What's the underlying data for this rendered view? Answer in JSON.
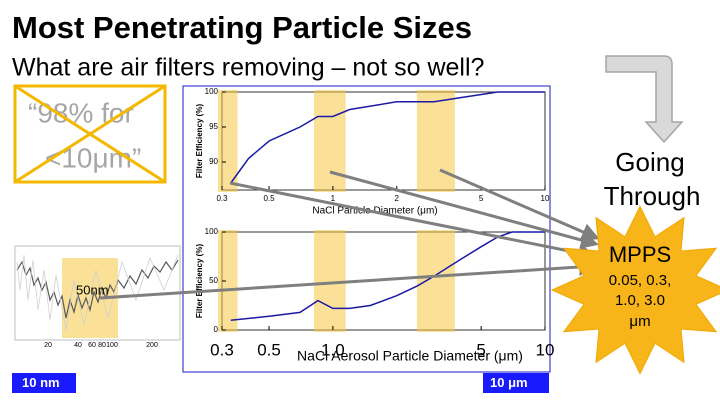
{
  "title": "Most Penetrating Particle Sizes",
  "subtitle": "What are air filters removing – not so well?",
  "crossed_box": {
    "line1": "“98% for",
    "line2": "<10μm”"
  },
  "going_through": {
    "line1": "Going",
    "line2": "Through"
  },
  "star": {
    "title": "MPPS",
    "line1": "0.05, 0.3,",
    "line2": "1.0, 3.0",
    "unit": "μm"
  },
  "small_chart": {
    "label": "50nm",
    "tick_labels": [
      "20",
      "40",
      "60",
      "80",
      "100",
      "200"
    ]
  },
  "scale_left": "10 nm",
  "scale_right": "10 μm",
  "chart_data": [
    {
      "type": "line",
      "xscale": "log",
      "xlabel": "NaCl Particle Diameter (μm)",
      "ylabel": "Filter Efficiency (%)",
      "x": [
        0.33,
        0.4,
        0.5,
        0.7,
        0.85,
        1,
        1.2,
        2,
        3,
        4,
        6,
        10
      ],
      "series": [
        {
          "color": "#1a1aa6",
          "values": [
            87,
            90.5,
            93,
            95,
            96.5,
            96.5,
            97.5,
            98.6,
            98.6,
            99.2,
            100,
            100
          ]
        }
      ],
      "xlim": [
        0.3,
        10
      ],
      "ylim": [
        86,
        100
      ],
      "xticks": [
        0.3,
        0.5,
        1,
        2,
        5,
        10
      ],
      "yticks": [
        90,
        95,
        100
      ],
      "highlight_bands": [
        [
          0.3,
          0.34
        ],
        [
          0.85,
          1.1
        ],
        [
          2.6,
          3.6
        ]
      ],
      "band_color": "#f5c842"
    },
    {
      "type": "line",
      "xscale": "log",
      "xlabel": "NaCl Aerosol Particle Diameter (μm)",
      "ylabel": "Filter Efficiency (%)",
      "x": [
        0.33,
        0.5,
        0.7,
        0.85,
        1,
        1.2,
        1.5,
        2,
        2.5,
        3,
        4,
        5,
        6,
        7,
        10
      ],
      "series": [
        {
          "color": "#1a1aa6",
          "values": [
            10,
            14,
            18,
            30,
            22,
            22,
            25,
            35,
            45,
            55,
            72,
            85,
            95,
            100,
            100
          ]
        }
      ],
      "xlim": [
        0.3,
        10
      ],
      "ylim": [
        0,
        100
      ],
      "xticks": [
        0.3,
        0.5,
        {
          "value": 1,
          "label": "1.0"
        },
        5,
        10
      ],
      "yticks": [
        0,
        50,
        100
      ],
      "highlight_bands": [
        [
          0.3,
          0.34
        ],
        [
          0.85,
          1.1
        ],
        [
          2.6,
          3.6
        ]
      ],
      "band_color": "#f5c842"
    }
  ]
}
